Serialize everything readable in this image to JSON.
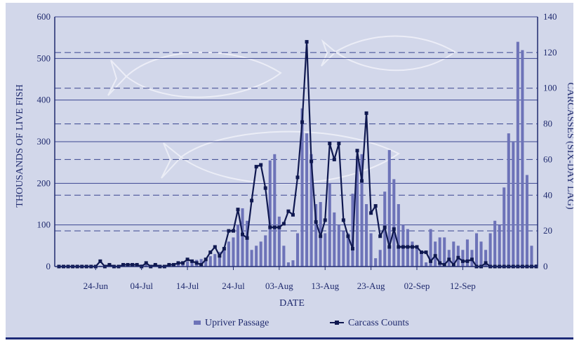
{
  "chart_data": {
    "type": "bar",
    "xlabel": "DATE",
    "ylabel": "THOUSANDS OF LIVE FISH",
    "y2label": "CARCASSES (SIX-DAY LAG)",
    "ylim": [
      0,
      600
    ],
    "y2lim": [
      0,
      140
    ],
    "yticks": [
      0,
      100,
      200,
      300,
      400,
      500,
      600
    ],
    "y2ticks": [
      0,
      20,
      40,
      60,
      80,
      100,
      120,
      140
    ],
    "xticks": [
      {
        "label": "24-Jun",
        "day": 8
      },
      {
        "label": "04-Jul",
        "day": 18
      },
      {
        "label": "14-Jul",
        "day": 28
      },
      {
        "label": "24-Jul",
        "day": 38
      },
      {
        "label": "03-Aug",
        "day": 48
      },
      {
        "label": "13-Aug",
        "day": 58
      },
      {
        "label": "23-Aug",
        "day": 68
      },
      {
        "label": "02-Sep",
        "day": 78
      },
      {
        "label": "12-Sep",
        "day": 88
      }
    ],
    "x_start": "16-Jun",
    "x_end": "22-Sep",
    "grid": "horizontal dashed on right axis",
    "legend_position": "bottom",
    "series": [
      {
        "name": "Upriver Passage",
        "axis": "left",
        "color": "#6d73b8",
        "values": [
          2,
          2,
          2,
          2,
          2,
          3,
          3,
          2,
          2,
          2,
          3,
          4,
          4,
          4,
          4,
          4,
          4,
          4,
          5,
          4,
          4,
          4,
          4,
          4,
          5,
          6,
          7,
          10,
          12,
          14,
          16,
          18,
          20,
          25,
          30,
          35,
          45,
          60,
          70,
          100,
          140,
          110,
          40,
          50,
          60,
          75,
          255,
          270,
          120,
          50,
          10,
          15,
          80,
          380,
          320,
          270,
          150,
          155,
          80,
          200,
          130,
          100,
          85,
          80,
          175,
          265,
          270,
          150,
          80,
          20,
          40,
          180,
          280,
          210,
          150,
          100,
          90,
          60,
          50,
          30,
          10,
          90,
          60,
          70,
          70,
          40,
          60,
          50,
          40,
          65,
          40,
          80,
          60,
          40,
          80,
          110,
          100,
          190,
          320,
          300,
          540,
          520,
          220,
          50,
          5
        ]
      },
      {
        "name": "Carcass Counts",
        "axis": "right",
        "color": "#0f1850",
        "values": [
          0,
          0,
          0,
          0,
          0,
          0,
          0,
          0,
          0,
          3,
          0,
          1,
          0,
          0,
          1,
          1,
          1,
          1,
          0,
          2,
          0,
          1,
          0,
          0,
          1,
          1,
          2,
          2,
          4,
          3,
          2,
          1,
          4,
          8,
          11,
          6,
          10,
          20,
          20,
          32,
          18,
          16,
          37,
          56,
          57,
          44,
          22,
          22,
          22,
          24,
          31,
          29,
          50,
          81,
          126,
          59,
          25,
          17,
          26,
          69,
          60,
          69,
          26,
          17,
          10,
          65,
          48,
          86,
          30,
          34,
          17,
          22,
          11,
          21,
          11,
          11,
          11,
          11,
          11,
          8,
          8,
          3,
          6,
          2,
          1,
          4,
          1,
          5,
          3,
          3,
          4,
          0,
          0,
          2,
          0,
          0,
          0,
          0,
          0,
          0,
          0,
          0,
          0,
          0,
          0
        ]
      }
    ]
  }
}
